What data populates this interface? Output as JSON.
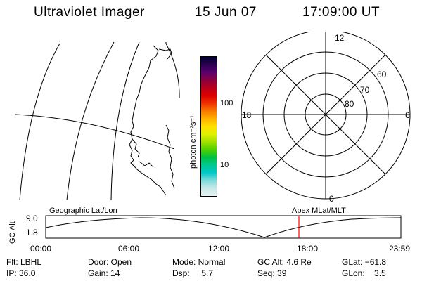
{
  "header": {
    "instrument": "Ultraviolet Imager",
    "date": "15 Jun 07",
    "time": "17:09:00 UT"
  },
  "colorbar": {
    "unit_label": "photon cm⁻²s⁻¹",
    "tick_100": "100",
    "tick_10": "10",
    "colors": [
      "#000033",
      "#2a0050",
      "#5a0070",
      "#8a0040",
      "#b8001c",
      "#dc0000",
      "#f03000",
      "#fa7800",
      "#ffb000",
      "#ffe000",
      "#e0f000",
      "#a0e000",
      "#50d000",
      "#00c040",
      "#00c890",
      "#00c8c8",
      "#80dada",
      "#c8e8e8",
      "#e8f2f2"
    ]
  },
  "polar_plot": {
    "label_top": "12",
    "label_left": "18",
    "label_right": "6",
    "label_bottom": "0",
    "ring_60": "60",
    "ring_70": "70",
    "ring_80": "80"
  },
  "timeline": {
    "ylabel": "GC Alt",
    "y_top": "9.0",
    "y_bottom": "1.8",
    "left_title": "Geographic Lat/Lon",
    "right_title": "Apex MLat/MLT",
    "ticks": [
      "00:00",
      "06:00",
      "12:00",
      "18:00",
      "23:59"
    ],
    "marker_color": "#ff0000"
  },
  "info": {
    "flt": "Flt: LBHL",
    "ip": "IP: 36.0",
    "door": "Door: Open",
    "gain": "Gain: 14",
    "mode": "Mode: Normal",
    "dsp": "Dsp:     5.7",
    "gcalt": "GC Alt: 4.6 Re",
    "seq": "Seq: 39",
    "glat": "GLat: −61.8",
    "glon": "GLon:    3.5"
  }
}
